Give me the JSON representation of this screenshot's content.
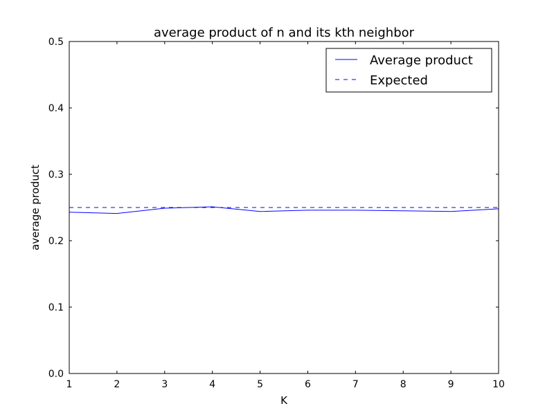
{
  "chart_data": {
    "type": "line",
    "title": "average product of n and its kth neighbor",
    "xlabel": "K",
    "ylabel": "average product",
    "xlim": [
      1,
      10
    ],
    "ylim": [
      0.0,
      0.5
    ],
    "xticks": [
      1,
      2,
      3,
      4,
      5,
      6,
      7,
      8,
      9,
      10
    ],
    "yticks": [
      0.0,
      0.1,
      0.2,
      0.3,
      0.4,
      0.5
    ],
    "ytick_labels": [
      "0.0",
      "0.1",
      "0.2",
      "0.3",
      "0.4",
      "0.5"
    ],
    "grid": false,
    "legend_position": "top-right",
    "x": [
      1,
      2,
      3,
      4,
      5,
      6,
      7,
      8,
      9,
      10
    ],
    "series": [
      {
        "name": "Average product",
        "style": "solid",
        "color": "#0000ff",
        "values": [
          0.243,
          0.241,
          0.249,
          0.251,
          0.244,
          0.246,
          0.246,
          0.245,
          0.244,
          0.248
        ]
      },
      {
        "name": "Expected",
        "style": "dashed",
        "color": "#0000ff",
        "values": [
          0.25,
          0.25,
          0.25,
          0.25,
          0.25,
          0.25,
          0.25,
          0.25,
          0.25,
          0.25
        ]
      }
    ]
  }
}
